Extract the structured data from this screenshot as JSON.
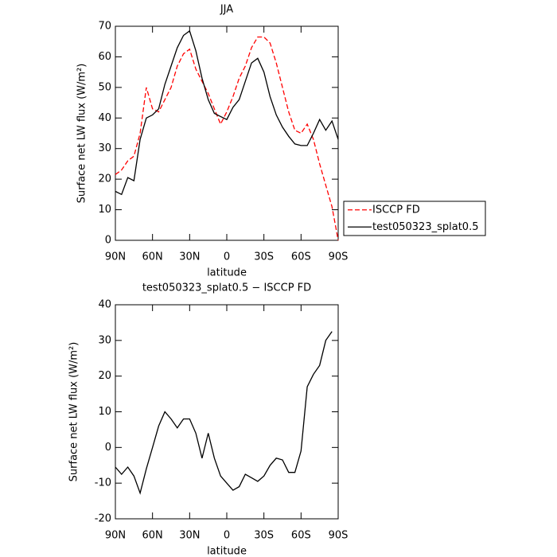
{
  "chart_data": [
    {
      "type": "line",
      "title": "JJA",
      "xlabel": "latitude",
      "ylabel": "Surface net LW flux (W/m²)",
      "x": [
        90,
        85,
        80,
        75,
        70,
        65,
        60,
        55,
        50,
        45,
        40,
        35,
        30,
        25,
        20,
        15,
        10,
        5,
        0,
        -5,
        -10,
        -15,
        -20,
        -25,
        -30,
        -35,
        -40,
        -45,
        -50,
        -55,
        -60,
        -65,
        -70,
        -75,
        -80,
        -85,
        -90
      ],
      "series": [
        {
          "name": "ISCCP FD",
          "color": "#ff0000",
          "dash": "dashed",
          "values": [
            21.5,
            23,
            26,
            27.5,
            35,
            50,
            43,
            42,
            46,
            50,
            57,
            61,
            62.5,
            56,
            52,
            48,
            43,
            38,
            42,
            47,
            53,
            57,
            63,
            66.5,
            66.5,
            64.5,
            58,
            50,
            42,
            36,
            35,
            38,
            33,
            25,
            18,
            11,
            0
          ]
        },
        {
          "name": "test050323_splat0.5",
          "color": "#000000",
          "dash": "solid",
          "values": [
            16,
            15,
            20.5,
            19.5,
            33,
            40,
            41,
            43,
            51,
            57,
            63,
            67,
            68.5,
            62,
            53,
            46,
            41.5,
            40.5,
            39.5,
            43.5,
            46,
            52,
            58,
            59.5,
            55,
            47,
            41,
            37,
            34,
            31.5,
            31,
            31,
            35,
            39.5,
            36,
            39,
            33
          ]
        }
      ],
      "xlim": [
        90,
        -90
      ],
      "xticks": [
        {
          "value": 90,
          "label": "90N"
        },
        {
          "value": 60,
          "label": "60N"
        },
        {
          "value": 30,
          "label": "30N"
        },
        0,
        {
          "value": -30,
          "label": "30S"
        },
        {
          "value": -60,
          "label": "60S"
        },
        {
          "value": -90,
          "label": "90S"
        }
      ],
      "ylim": [
        0,
        70
      ],
      "yticks": [
        0,
        10,
        20,
        30,
        40,
        50,
        60,
        70
      ],
      "legend": "right"
    },
    {
      "type": "line",
      "title": "test050323_splat0.5 − ISCCP FD",
      "xlabel": "latitude",
      "ylabel": "Surface net LW flux (W/m²)",
      "x": [
        90,
        85,
        80,
        75,
        70,
        65,
        60,
        55,
        50,
        45,
        40,
        35,
        30,
        25,
        20,
        15,
        10,
        5,
        0,
        -5,
        -10,
        -15,
        -20,
        -25,
        -30,
        -35,
        -40,
        -45,
        -50,
        -55,
        -60,
        -65,
        -70,
        -75,
        -80,
        -85,
        -90
      ],
      "series": [
        {
          "color": "#000000",
          "dash": "solid",
          "values": [
            -5.5,
            -7.5,
            -5.5,
            -8,
            -12.8,
            -6,
            0,
            6,
            10,
            8,
            5.5,
            8,
            8,
            4,
            -3,
            4,
            -3,
            -8,
            -10,
            -12,
            -11,
            -7.5,
            -8.5,
            -9.5,
            -8,
            -5,
            -3,
            -3.5,
            -7,
            -7,
            -1,
            17,
            20.5,
            23,
            30,
            32.5,
            null
          ]
        }
      ],
      "xlim": [
        90,
        -90
      ],
      "xticks": [
        {
          "value": 90,
          "label": "90N"
        },
        {
          "value": 60,
          "label": "60N"
        },
        {
          "value": 30,
          "label": "30N"
        },
        0,
        {
          "value": -30,
          "label": "30S"
        },
        {
          "value": -60,
          "label": "60S"
        },
        {
          "value": -90,
          "label": "90S"
        }
      ],
      "ylim": [
        -20,
        40
      ],
      "yticks": [
        -20,
        -10,
        0,
        10,
        20,
        30,
        40
      ]
    }
  ]
}
